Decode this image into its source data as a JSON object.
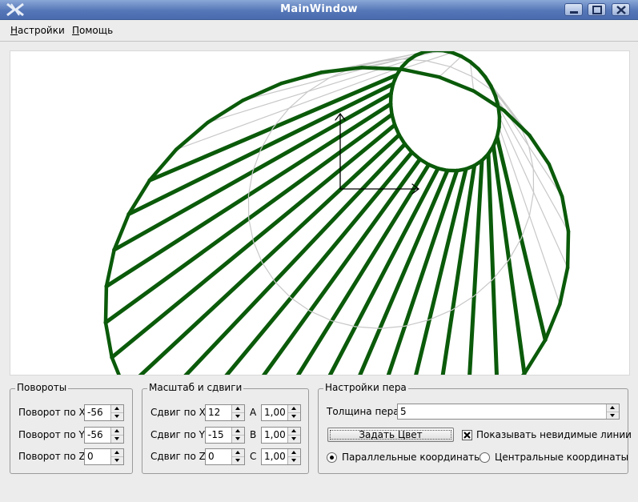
{
  "window": {
    "title": "MainWindow",
    "app_icon": "x-logo-icon",
    "controls": [
      "minimize-icon",
      "maximize-icon",
      "close-icon"
    ]
  },
  "menu": {
    "items": [
      {
        "first": "Н",
        "rest": "астройки"
      },
      {
        "first": "П",
        "rest": "омощь"
      }
    ]
  },
  "rotations": {
    "title": "Повороты",
    "rows": [
      {
        "label": "Поворот по X",
        "value": "-56"
      },
      {
        "label": "Поворот по Y",
        "value": "-56"
      },
      {
        "label": "Поворот по Z",
        "value": "0"
      }
    ]
  },
  "scale_shift": {
    "title": "Масштаб и сдвиги",
    "rows": [
      {
        "label": "Сдвиг по X",
        "value": "12",
        "scale_label": "A",
        "scale_value": "1,00"
      },
      {
        "label": "Сдвиг по Y",
        "value": "-15",
        "scale_label": "B",
        "scale_value": "1,00"
      },
      {
        "label": "Сдвиг по Z",
        "value": "0",
        "scale_label": "C",
        "scale_value": "1,00"
      }
    ]
  },
  "pen": {
    "title": "Настройки пера",
    "thickness_label": "Толщина пера",
    "thickness_value": "5",
    "color_button": "Задать Цвет",
    "show_hidden_label": "Показывать невидимые линии",
    "show_hidden_checked": true,
    "parallel_label": "Параллельные координаты",
    "central_label": "Центральные координаты",
    "projection_selected": "parallel"
  },
  "colors": {
    "line": "#0a5a0a",
    "hidden_line": "#c8c8c8",
    "titlebar": "#5577b8"
  }
}
